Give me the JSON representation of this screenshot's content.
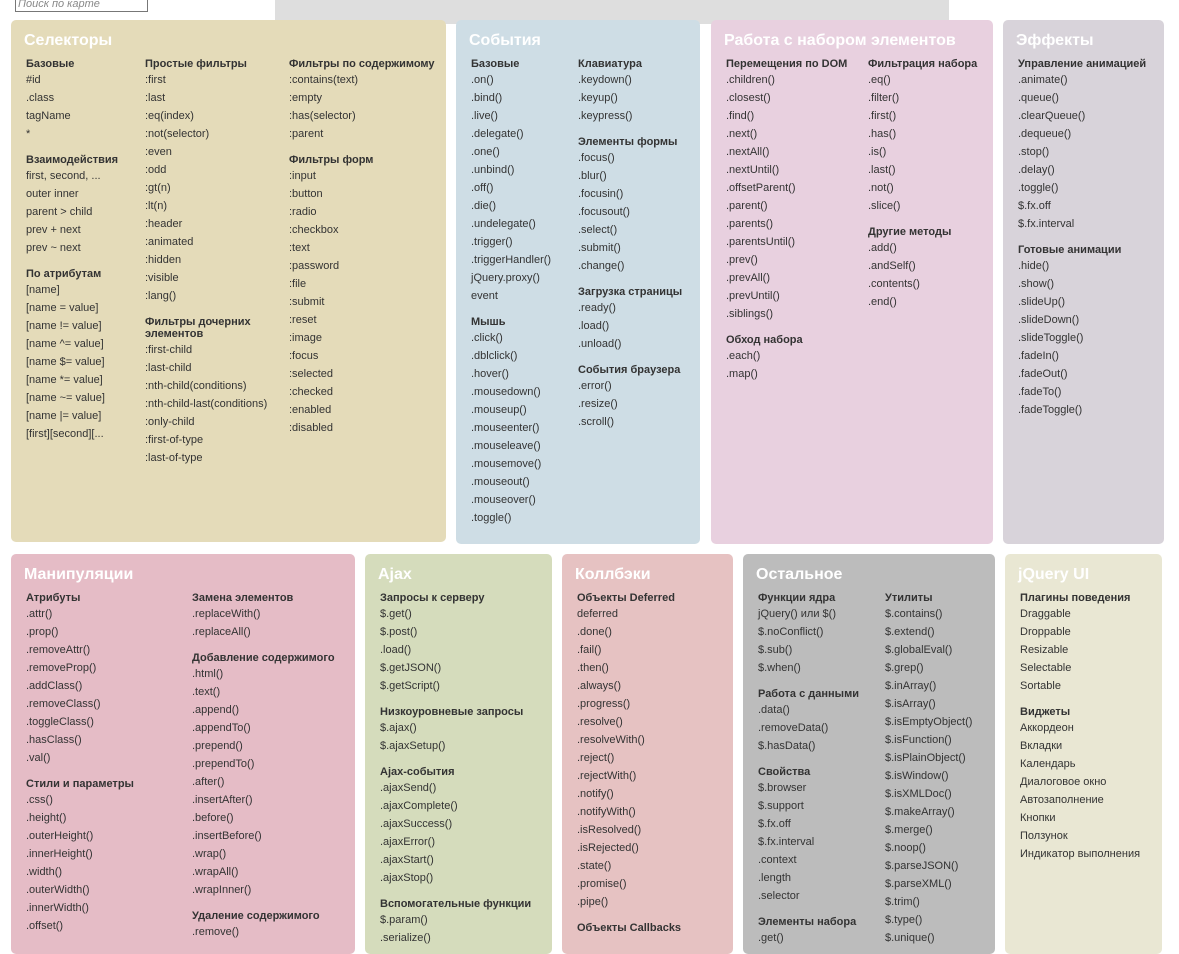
{
  "search": {
    "placeholder": "Поиск по карте"
  },
  "panels": [
    {
      "key": "selectors",
      "title": "Селекторы",
      "bg": "#e4dbb9",
      "cols": [
        {
          "x": 15,
          "groups": [
            {
              "title": "Базовые",
              "items": [
                "#id",
                ".class",
                "tagName",
                "*"
              ]
            },
            {
              "title": "Взаимодействия",
              "items": [
                "first, second, ...",
                "outer inner",
                "parent > child",
                "prev + next",
                "prev ~ next"
              ]
            },
            {
              "title": "По атрибутам",
              "items": [
                "[name]",
                "[name = value]",
                "[name != value]",
                "[name ^= value]",
                "[name $= value]",
                "[name *= value]",
                "[name ~= value]",
                "[name |= value]",
                "[first][second][..."
              ]
            }
          ]
        },
        {
          "x": 134,
          "groups": [
            {
              "title": "Простые фильтры",
              "items": [
                ":first",
                ":last",
                ":eq(index)",
                ":not(selector)",
                ":even",
                ":odd",
                ":gt(n)",
                ":lt(n)",
                ":header",
                ":animated",
                ":hidden",
                ":visible",
                ":lang()"
              ]
            },
            {
              "title": "Фильтры дочерних элементов",
              "items": [
                ":first-child",
                ":last-child",
                ":nth-child(conditions)",
                ":nth-child-last(conditions)",
                ":only-child",
                ":first-of-type",
                ":last-of-type"
              ]
            }
          ]
        },
        {
          "x": 278,
          "groups": [
            {
              "title": "Фильтры по содержимому",
              "items": [
                ":contains(text)",
                ":empty",
                ":has(selector)",
                ":parent"
              ]
            },
            {
              "title": "Фильтры форм",
              "items": [
                ":input",
                ":button",
                ":radio",
                ":checkbox",
                ":text",
                ":password",
                ":file",
                ":submit",
                ":reset",
                ":image",
                ":focus",
                ":selected",
                ":checked",
                ":enabled",
                ":disabled"
              ]
            }
          ]
        }
      ]
    },
    {
      "key": "events",
      "title": "События",
      "bg": "#cedde5",
      "cols": [
        {
          "x": 15,
          "groups": [
            {
              "title": "Базовые",
              "items": [
                ".on()",
                ".bind()",
                ".live()",
                ".delegate()",
                ".one()",
                ".unbind()",
                ".off()",
                ".die()",
                ".undelegate()",
                ".trigger()",
                ".triggerHandler()",
                "jQuery.proxy()",
                "event"
              ]
            },
            {
              "title": "Мышь",
              "items": [
                ".click()",
                ".dblclick()",
                ".hover()",
                ".mousedown()",
                ".mouseup()",
                ".mouseenter()",
                ".mouseleave()",
                ".mousemove()",
                ".mouseout()",
                ".mouseover()",
                ".toggle()"
              ]
            }
          ]
        },
        {
          "x": 122,
          "groups": [
            {
              "title": "Клавиатура",
              "items": [
                ".keydown()",
                ".keyup()",
                ".keypress()"
              ]
            },
            {
              "title": "Элементы формы",
              "items": [
                ".focus()",
                ".blur()",
                ".focusin()",
                ".focusout()",
                ".select()",
                ".submit()",
                ".change()"
              ]
            },
            {
              "title": "Загрузка страницы",
              "items": [
                ".ready()",
                ".load()",
                ".unload()"
              ]
            },
            {
              "title": "События браузера",
              "items": [
                ".error()",
                ".resize()",
                ".scroll()"
              ]
            }
          ]
        }
      ]
    },
    {
      "key": "traversing",
      "title": "Работа с набором элементов",
      "bg": "#e8d0df",
      "cols": [
        {
          "x": 15,
          "groups": [
            {
              "title": "Перемещения по DOM",
              "items": [
                ".children()",
                ".closest()",
                ".find()",
                ".next()",
                ".nextAll()",
                ".nextUntil()",
                ".offsetParent()",
                ".parent()",
                ".parents()",
                ".parentsUntil()",
                ".prev()",
                ".prevAll()",
                ".prevUntil()",
                ".siblings()"
              ]
            },
            {
              "title": "Обход набора",
              "items": [
                ".each()",
                ".map()"
              ]
            }
          ]
        },
        {
          "x": 157,
          "groups": [
            {
              "title": "Фильтрация набора",
              "items": [
                ".eq()",
                ".filter()",
                ".first()",
                ".has()",
                ".is()",
                ".last()",
                ".not()",
                ".slice()"
              ]
            },
            {
              "title": "Другие методы",
              "items": [
                ".add()",
                ".andSelf()",
                ".contents()",
                ".end()"
              ]
            }
          ]
        }
      ]
    },
    {
      "key": "effects",
      "title": "Эффекты",
      "bg": "#d8d3da",
      "cols": [
        {
          "x": 15,
          "groups": [
            {
              "title": "Управление анимацией",
              "items": [
                ".animate()",
                ".queue()",
                ".clearQueue()",
                ".dequeue()",
                ".stop()",
                ".delay()",
                ".toggle()",
                "$.fx.off",
                "$.fx.interval"
              ]
            },
            {
              "title": "Готовые анимации",
              "items": [
                ".hide()",
                ".show()",
                ".slideUp()",
                ".slideDown()",
                ".slideToggle()",
                ".fadeIn()",
                ".fadeOut()",
                ".fadeTo()",
                ".fadeToggle()"
              ]
            }
          ]
        }
      ]
    },
    {
      "key": "manipulation",
      "title": "Манипуляции",
      "bg": "#e5bcc6",
      "cols": [
        {
          "x": 15,
          "groups": [
            {
              "title": "Атрибуты",
              "items": [
                ".attr()",
                ".prop()",
                ".removeAttr()",
                ".removeProp()",
                ".addClass()",
                ".removeClass()",
                ".toggleClass()",
                ".hasClass()",
                ".val()"
              ]
            },
            {
              "title": "Стили и параметры",
              "items": [
                ".css()",
                ".height()",
                ".outerHeight()",
                ".innerHeight()",
                ".width()",
                ".outerWidth()",
                ".innerWidth()",
                ".offset()"
              ]
            }
          ]
        },
        {
          "x": 181,
          "groups": [
            {
              "title": "Замена элементов",
              "items": [
                ".replaceWith()",
                ".replaceAll()"
              ]
            },
            {
              "title": "Добавление содержимого",
              "items": [
                ".html()",
                ".text()",
                ".append()",
                ".appendTo()",
                ".prepend()",
                ".prependTo()",
                ".after()",
                ".insertAfter()",
                ".before()",
                ".insertBefore()",
                ".wrap()",
                ".wrapAll()",
                ".wrapInner()"
              ]
            },
            {
              "title": "Удаление содержимого",
              "items": [
                ".remove()"
              ]
            }
          ]
        }
      ]
    },
    {
      "key": "ajax",
      "title": "Ajax",
      "bg": "#d5dcbc",
      "cols": [
        {
          "x": 15,
          "groups": [
            {
              "title": "Запросы к серверу",
              "items": [
                "$.get()",
                "$.post()",
                ".load()",
                "$.getJSON()",
                "$.getScript()"
              ]
            },
            {
              "title": "Низкоуровневые запросы",
              "items": [
                "$.ajax()",
                "$.ajaxSetup()"
              ]
            },
            {
              "title": "Ajax-события",
              "items": [
                ".ajaxSend()",
                ".ajaxComplete()",
                ".ajaxSuccess()",
                ".ajaxError()",
                ".ajaxStart()",
                ".ajaxStop()"
              ]
            },
            {
              "title": "Вспомогательные функции",
              "items": [
                "$.param()",
                ".serialize()"
              ]
            }
          ]
        }
      ]
    },
    {
      "key": "callbacks",
      "title": "Коллбэки",
      "bg": "#e6c2c2",
      "cols": [
        {
          "x": 15,
          "groups": [
            {
              "title": "Объекты Deferred",
              "items": [
                "deferred",
                ".done()",
                ".fail()",
                ".then()",
                ".always()",
                ".progress()",
                ".resolve()",
                ".resolveWith()",
                ".reject()",
                ".rejectWith()",
                ".notify()",
                ".notifyWith()",
                ".isResolved()",
                ".isRejected()",
                ".state()",
                ".promise()",
                ".pipe()"
              ]
            },
            {
              "title": "Объекты Callbacks",
              "items": []
            }
          ]
        }
      ]
    },
    {
      "key": "misc",
      "title": "Остальное",
      "bg": "#bcbcbc",
      "cols": [
        {
          "x": 15,
          "groups": [
            {
              "title": "Функции ядра",
              "items": [
                "jQuery() или $()",
                "$.noConflict()",
                "$.sub()",
                "$.when()"
              ]
            },
            {
              "title": "Работа с данными",
              "items": [
                ".data()",
                ".removeData()",
                "$.hasData()"
              ]
            },
            {
              "title": "Свойства",
              "items": [
                "$.browser",
                "$.support",
                "$.fx.off",
                "$.fx.interval",
                ".context",
                ".length",
                ".selector"
              ]
            },
            {
              "title": "Элементы набора",
              "items": [
                ".get()"
              ]
            }
          ]
        },
        {
          "x": 142,
          "groups": [
            {
              "title": "Утилиты",
              "items": [
                "$.contains()",
                "$.extend()",
                "$.globalEval()",
                "$.grep()",
                "$.inArray()",
                "$.isArray()",
                "$.isEmptyObject()",
                "$.isFunction()",
                "$.isPlainObject()",
                "$.isWindow()",
                "$.isXMLDoc()",
                "$.makeArray()",
                "$.merge()",
                "$.noop()",
                "$.parseJSON()",
                "$.parseXML()",
                "$.trim()",
                "$.type()",
                "$.unique()"
              ]
            }
          ]
        }
      ]
    },
    {
      "key": "jqueryui",
      "title": "jQuery UI",
      "bg": "#e9e7d3",
      "cols": [
        {
          "x": 15,
          "groups": [
            {
              "title": "Плагины поведения",
              "items": [
                "Draggable",
                "Droppable",
                "Resizable",
                "Selectable",
                "Sortable"
              ]
            },
            {
              "title": "Виджеты",
              "items": [
                "Аккордеон",
                "Вкладки",
                "Календарь",
                "Диалоговое окно",
                "Автозаполнение",
                "Кнопки",
                "Ползунок",
                "Индикатор выполнения"
              ]
            }
          ]
        }
      ]
    }
  ]
}
